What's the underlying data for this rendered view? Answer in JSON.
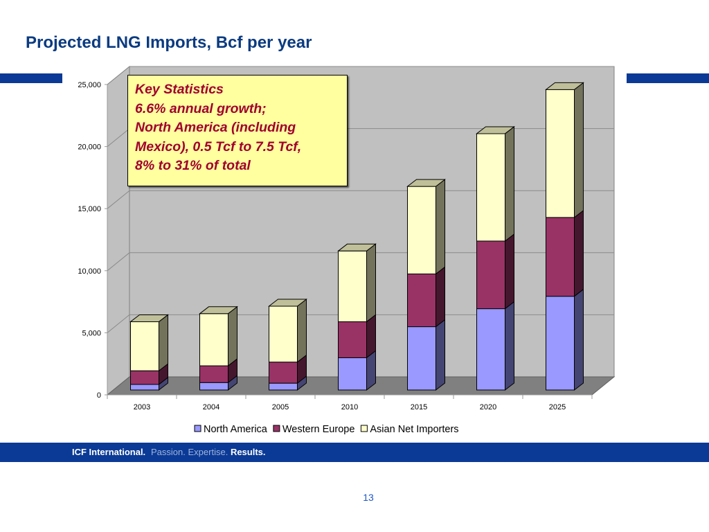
{
  "slide": {
    "title": "Projected LNG Imports, Bcf per year",
    "page_number": "13"
  },
  "key_stats": {
    "lines": [
      "Key Statistics",
      "6.6% annual growth;",
      "North America (including",
      "Mexico), 0.5 Tcf to 7.5 Tcf,",
      "8% to 31% of total"
    ]
  },
  "footer": {
    "brand": "ICF International.",
    "tagline_1": "Passion.",
    "tagline_2": "Expertise.",
    "tagline_3": "Results."
  },
  "chart_data": {
    "type": "bar",
    "stacked": true,
    "three_d": true,
    "categories": [
      "2003",
      "2004",
      "2005",
      "2010",
      "2015",
      "2020",
      "2025"
    ],
    "series": [
      {
        "name": "North America",
        "color": "#9999ff",
        "values": [
          450,
          600,
          550,
          2600,
          5100,
          6550,
          7550
        ]
      },
      {
        "name": "Western Europe",
        "color": "#993366",
        "values": [
          1100,
          1350,
          1700,
          2900,
          4250,
          5450,
          6350
        ]
      },
      {
        "name": "Asian Net Importers",
        "color": "#ffffcc",
        "values": [
          3950,
          4200,
          4500,
          5700,
          7050,
          8650,
          10300
        ]
      }
    ],
    "ylim": [
      0,
      25000
    ],
    "yticks": [
      0,
      5000,
      10000,
      15000,
      20000,
      25000
    ],
    "ytick_labels": [
      "0",
      "5,000",
      "10,000",
      "15,000",
      "20,000",
      "25,000"
    ],
    "grid": true,
    "legend_position": "bottom",
    "title": "",
    "xlabel": "",
    "ylabel": ""
  }
}
